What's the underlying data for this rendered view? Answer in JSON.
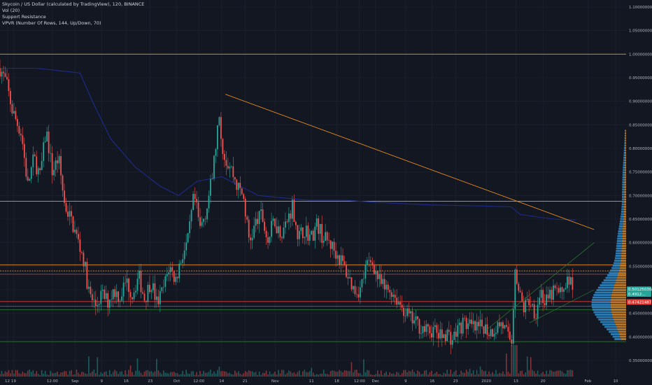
{
  "legend": {
    "line1": "Skycoin / US Dollar (calculated by TradingView), 120, BINANCE",
    "line2": "Vol (20)",
    "line3": "Support Resistance",
    "line4": "VPVR (Number Of Rows, 144, Up/Down, 70)"
  },
  "colors": {
    "background": "#131722",
    "grid": "#1f2433",
    "up": "#26a69a",
    "down": "#ef5350",
    "resistance": "#f7931a",
    "support_red": "#e53935",
    "support_green": "#2e7d32",
    "trend": "#f7931a",
    "blue_line": "#1e2a8a",
    "vpvr_up": "#2e8ecf",
    "vpvr_down": "#d68a2a"
  },
  "chart_data": {
    "type": "candlestick",
    "ylim": [
      0.32,
      1.1
    ],
    "y_ticks": [
      "1.10000000",
      "1.05000000",
      "1.00000000",
      "0.95000000",
      "0.90000000",
      "0.85000000",
      "0.80000000",
      "0.75000000",
      "0.70000000",
      "0.65000000",
      "0.60000000",
      "0.55000000",
      "0.50000000",
      "0.45000000",
      "0.40000000",
      "0.35000000"
    ],
    "x_ticks": [
      "12",
      "19",
      "12:00",
      "Sep",
      "9",
      "16",
      "23",
      "Oct",
      "12:00",
      "14",
      "21",
      "Nov",
      "11",
      "18",
      "12:00",
      "Dec",
      "9",
      "16",
      "23",
      "2020",
      "13",
      "20",
      "Feb",
      "10"
    ],
    "x_tick_positions": [
      0.012,
      0.022,
      0.085,
      0.122,
      0.165,
      0.205,
      0.244,
      0.287,
      0.323,
      0.36,
      0.398,
      0.447,
      0.506,
      0.547,
      0.584,
      0.61,
      0.659,
      0.702,
      0.74,
      0.79,
      0.838,
      0.882,
      0.955,
      1.0
    ],
    "close_path": [
      [
        0.0,
        0.97
      ],
      [
        0.01,
        0.94
      ],
      [
        0.02,
        0.88
      ],
      [
        0.035,
        0.83
      ],
      [
        0.045,
        0.72
      ],
      [
        0.055,
        0.78
      ],
      [
        0.065,
        0.74
      ],
      [
        0.075,
        0.84
      ],
      [
        0.085,
        0.75
      ],
      [
        0.095,
        0.78
      ],
      [
        0.105,
        0.68
      ],
      [
        0.115,
        0.65
      ],
      [
        0.125,
        0.61
      ],
      [
        0.135,
        0.57
      ],
      [
        0.145,
        0.49
      ],
      [
        0.155,
        0.465
      ],
      [
        0.165,
        0.49
      ],
      [
        0.175,
        0.475
      ],
      [
        0.185,
        0.5
      ],
      [
        0.195,
        0.485
      ],
      [
        0.205,
        0.52
      ],
      [
        0.215,
        0.49
      ],
      [
        0.225,
        0.53
      ],
      [
        0.235,
        0.48
      ],
      [
        0.245,
        0.52
      ],
      [
        0.255,
        0.47
      ],
      [
        0.265,
        0.5
      ],
      [
        0.275,
        0.55
      ],
      [
        0.285,
        0.52
      ],
      [
        0.295,
        0.57
      ],
      [
        0.305,
        0.6
      ],
      [
        0.315,
        0.7
      ],
      [
        0.325,
        0.63
      ],
      [
        0.335,
        0.67
      ],
      [
        0.345,
        0.74
      ],
      [
        0.355,
        0.86
      ],
      [
        0.365,
        0.78
      ],
      [
        0.375,
        0.76
      ],
      [
        0.385,
        0.72
      ],
      [
        0.395,
        0.7
      ],
      [
        0.405,
        0.6
      ],
      [
        0.415,
        0.64
      ],
      [
        0.425,
        0.66
      ],
      [
        0.435,
        0.6
      ],
      [
        0.445,
        0.65
      ],
      [
        0.455,
        0.62
      ],
      [
        0.465,
        0.64
      ],
      [
        0.475,
        0.68
      ],
      [
        0.485,
        0.61
      ],
      [
        0.495,
        0.63
      ],
      [
        0.505,
        0.61
      ],
      [
        0.515,
        0.64
      ],
      [
        0.525,
        0.61
      ],
      [
        0.535,
        0.6
      ],
      [
        0.545,
        0.58
      ],
      [
        0.555,
        0.56
      ],
      [
        0.565,
        0.53
      ],
      [
        0.575,
        0.5
      ],
      [
        0.585,
        0.5
      ],
      [
        0.595,
        0.55
      ],
      [
        0.605,
        0.56
      ],
      [
        0.615,
        0.52
      ],
      [
        0.625,
        0.5
      ],
      [
        0.635,
        0.5
      ],
      [
        0.645,
        0.48
      ],
      [
        0.655,
        0.46
      ],
      [
        0.665,
        0.44
      ],
      [
        0.675,
        0.43
      ],
      [
        0.685,
        0.42
      ],
      [
        0.695,
        0.41
      ],
      [
        0.705,
        0.415
      ],
      [
        0.715,
        0.4
      ],
      [
        0.725,
        0.41
      ],
      [
        0.735,
        0.395
      ],
      [
        0.745,
        0.42
      ],
      [
        0.755,
        0.43
      ],
      [
        0.765,
        0.42
      ],
      [
        0.775,
        0.415
      ],
      [
        0.785,
        0.425
      ],
      [
        0.795,
        0.41
      ],
      [
        0.805,
        0.42
      ],
      [
        0.815,
        0.43
      ],
      [
        0.825,
        0.4
      ],
      [
        0.832,
        0.39
      ],
      [
        0.836,
        0.56
      ],
      [
        0.842,
        0.5
      ],
      [
        0.85,
        0.46
      ],
      [
        0.86,
        0.48
      ],
      [
        0.87,
        0.45
      ],
      [
        0.878,
        0.5
      ],
      [
        0.885,
        0.47
      ],
      [
        0.892,
        0.48
      ],
      [
        0.9,
        0.5
      ],
      [
        0.91,
        0.49
      ],
      [
        0.92,
        0.52
      ],
      [
        0.93,
        0.51
      ]
    ],
    "support_resistance_lines": [
      {
        "price": 1.0,
        "color": "#f7931a"
      },
      {
        "price": 0.688,
        "color": "#f7931a"
      },
      {
        "price": 0.553,
        "color": "#f7931a"
      },
      {
        "price": 0.54,
        "color": "#f7931a",
        "dashed": true
      },
      {
        "price": 0.533,
        "color": "#e53935"
      },
      {
        "price": 0.475,
        "color": "#e53935"
      },
      {
        "price": 0.465,
        "color": "#2e7d32"
      },
      {
        "price": 0.4575,
        "color": "#2e7d32"
      },
      {
        "price": 0.39,
        "color": "#2e7d32"
      }
    ],
    "price_tags": [
      {
        "label": "0.50125030",
        "price": 0.5012,
        "color": "#26a69a"
      },
      {
        "label": "0.4912...",
        "price": 0.491,
        "color": "#26a69a"
      },
      {
        "label": "0.47421487",
        "price": 0.4742,
        "color": "#e53935"
      }
    ]
  }
}
